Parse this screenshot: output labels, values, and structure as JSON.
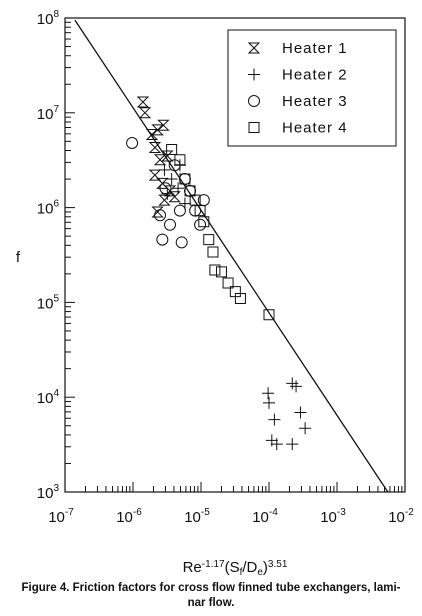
{
  "chart_data": {
    "type": "scatter",
    "y_label": "f",
    "x_label": [
      {
        "text": "Re"
      },
      {
        "text": "-1.17",
        "style": "sup"
      },
      {
        "text": "(S"
      },
      {
        "text": "f",
        "style": "sub"
      },
      {
        "text": "/D"
      },
      {
        "text": "e",
        "style": "sub"
      },
      {
        "text": ")"
      },
      {
        "text": "3.51",
        "style": "sup"
      }
    ],
    "caption": [
      "Figure 4. Friction factors for cross flow finned tube exchangers, lami-",
      "nar flow."
    ],
    "log_x": true,
    "log_y": true,
    "minor_ticks": true,
    "legend": "upper right",
    "xlim": [
      1e-07,
      0.01
    ],
    "ylim": [
      1000,
      100000000
    ],
    "xticks": [
      {
        "value": 1e-07,
        "label": "10",
        "exponent": "-7"
      },
      {
        "value": 1e-06,
        "label": "10",
        "exponent": "-6"
      },
      {
        "value": 1e-05,
        "label": "10",
        "exponent": "-5"
      },
      {
        "value": 0.0001,
        "label": "10",
        "exponent": "-4"
      },
      {
        "value": 0.001,
        "label": "10",
        "exponent": "-3"
      },
      {
        "value": 0.01,
        "label": "10",
        "exponent": "-2"
      }
    ],
    "yticks": [
      {
        "value": 1000,
        "label": "10",
        "exponent": "3"
      },
      {
        "value": 10000,
        "label": "10",
        "exponent": "4"
      },
      {
        "value": 100000,
        "label": "10",
        "exponent": "5"
      },
      {
        "value": 1000000,
        "label": "10",
        "exponent": "6"
      },
      {
        "value": 10000000,
        "label": "10",
        "exponent": "7"
      },
      {
        "value": 100000000,
        "label": "10",
        "exponent": "8"
      }
    ],
    "fit_line": {
      "x": [
        1.4e-07,
        0.0056
      ],
      "y": [
        95000000,
        1000
      ],
      "color": "#111111"
    },
    "series": [
      {
        "name": "Heater 1",
        "marker": "hourglass",
        "color": "#111111",
        "x": [
          1.4e-06,
          1.5e-06,
          1.9e-06,
          2.3e-06,
          2.8e-06,
          2.1e-06,
          2.5e-06,
          3.2e-06,
          2.1e-06,
          2.7e-06,
          3.5e-06,
          4.1e-06,
          2.9e-06,
          2.3e-06
        ],
        "values": [
          13000000,
          10000000,
          5900000,
          6600000,
          7400000,
          4300000,
          3200000,
          3500000,
          2200000,
          1800000,
          1500000,
          1300000,
          1200000,
          900000
        ]
      },
      {
        "name": "Heater 2",
        "marker": "plus",
        "color": "#111111",
        "x": [
          2.9e-06,
          3.7e-06,
          4.6e-06,
          3.2e-06,
          4.9e-06,
          5.8e-06,
          9.7e-05,
          0.0001,
          0.00012,
          0.00011,
          0.00013,
          0.00022,
          0.00029,
          0.00034,
          0.00022,
          0.00025
        ],
        "values": [
          2500000,
          2000000,
          1600000,
          1400000,
          2800000,
          1100000,
          11000,
          8700,
          5800,
          3500,
          3200,
          14000,
          6900,
          4700,
          3200,
          13000
        ]
      },
      {
        "name": "Heater 3",
        "marker": "circle",
        "color": "#111111",
        "x": [
          9.7e-07,
          2.5e-06,
          2.7e-06,
          5.2e-06,
          4.1e-06,
          5.8e-06,
          6.9e-06,
          4.9e-06,
          8.2e-06,
          9.7e-06,
          3.5e-06,
          1.1e-05,
          3e-06
        ],
        "values": [
          4800000,
          830000,
          460000,
          430000,
          2800000,
          2000000,
          1500000,
          930000,
          930000,
          660000,
          660000,
          1200000,
          1600000
        ]
      },
      {
        "name": "Heater 4",
        "marker": "square",
        "color": "#111111",
        "x": [
          3.7e-06,
          4.9e-06,
          5.8e-06,
          6.9e-06,
          8.2e-06,
          9.7e-06,
          1.1e-05,
          1.3e-05,
          1.5e-05,
          1.6e-05,
          2e-05,
          2.5e-05,
          3.2e-05,
          3.8e-05,
          0.0001
        ],
        "values": [
          4100000,
          3200000,
          2000000,
          1500000,
          1200000,
          930000,
          710000,
          460000,
          340000,
          220000,
          210000,
          160000,
          130000,
          110000,
          74000
        ]
      }
    ]
  }
}
